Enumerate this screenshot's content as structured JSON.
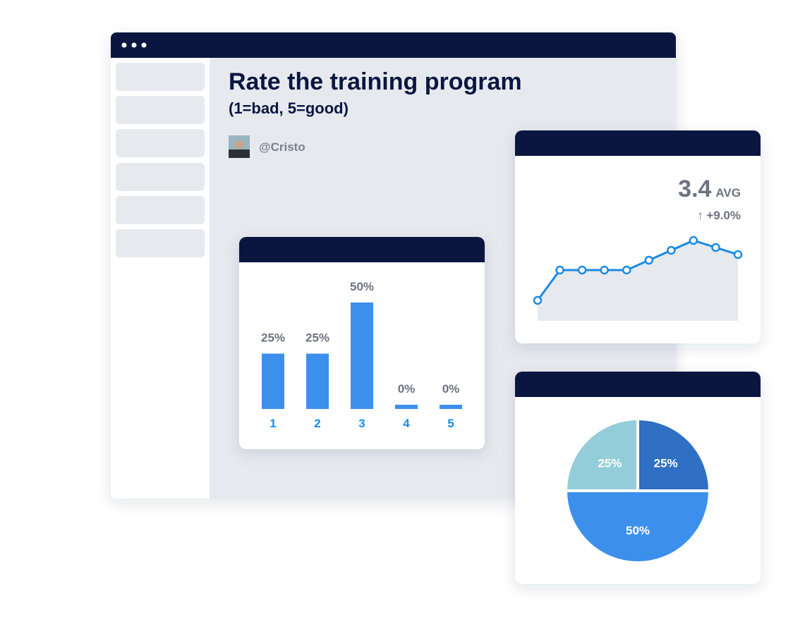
{
  "title": "Rate the training program",
  "subtitle": "(1=bad, 5=good)",
  "user": "@Cristo",
  "chart_data": [
    {
      "type": "bar",
      "categories": [
        "1",
        "2",
        "3",
        "4",
        "5"
      ],
      "values": [
        25,
        25,
        50,
        0,
        0
      ],
      "value_labels": [
        "25%",
        "25%",
        "50%",
        "0%",
        "0%"
      ],
      "color": "#3d8fec"
    },
    {
      "type": "line",
      "values": [
        29,
        72,
        72,
        72,
        72,
        86,
        100,
        114,
        104,
        94
      ],
      "color": "#1a8ae6",
      "average": "3.4",
      "average_label": "AVG",
      "change": "↑ +9.0%"
    },
    {
      "type": "pie",
      "values": [
        25,
        50,
        25
      ],
      "value_labels": [
        "25%",
        "50%",
        "25%"
      ],
      "colors": [
        "#2f6fc4",
        "#3d8fec",
        "#93cdd9"
      ]
    }
  ]
}
